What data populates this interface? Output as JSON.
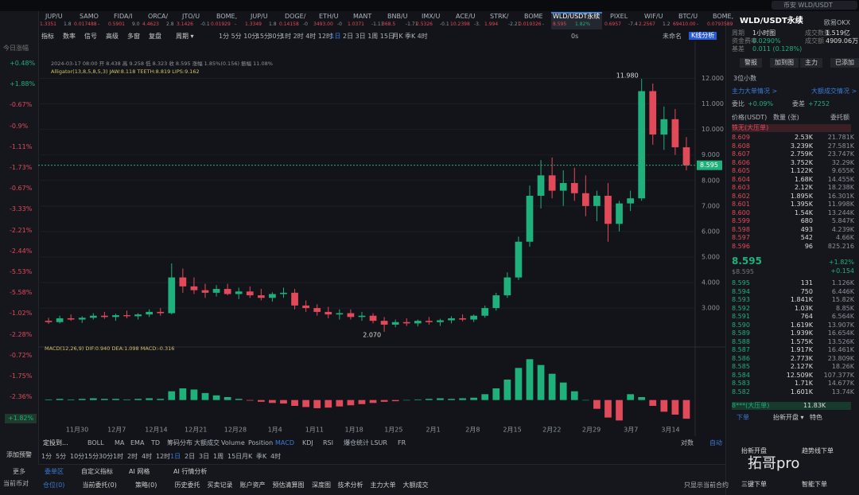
{
  "search": "币安 WLD/USDT",
  "left": {
    "title": "今日涨幅",
    "changes": [
      "+0.48%",
      "+1.88%",
      "-0.67%",
      "-0.9%",
      "-1.11%",
      "-1.73%",
      "-0.67%",
      "-3.33%",
      "-2.21%",
      "-2.44%",
      "-5.53%",
      "-5.58%",
      "-1.02%",
      "-2.28%",
      "-0.72%",
      "-1.75%",
      "-2.36%",
      "+1.82%"
    ],
    "alert": "添加预警",
    "more": "更多",
    "pair": "当前币对"
  },
  "tabs": [
    {
      "name": "JUP/U",
      "price": "1.3351",
      "change": "1.8"
    },
    {
      "name": "SAMO",
      "price": "0.017488",
      "change": "-"
    },
    {
      "name": "FIDA/I",
      "price": "0.5901",
      "change": "9.0"
    },
    {
      "name": "ORCA/",
      "price": "4.4623",
      "change": "2.8"
    },
    {
      "name": "JTO/U",
      "price": "3.1426",
      "change": "-0.1"
    },
    {
      "name": "BOME,",
      "price": "0.01929",
      "change": "-"
    },
    {
      "name": "JUP/U",
      "price": "1.3349",
      "change": "1.8"
    },
    {
      "name": "DOGE/",
      "price": "0.14158",
      "change": "-0"
    },
    {
      "name": "ETH/U",
      "price": "3493.00",
      "change": "-0"
    },
    {
      "name": "MANT",
      "price": "1.0371",
      "change": "-1.11"
    },
    {
      "name": "BNB/U",
      "price": "368.5",
      "change": "-1.71"
    },
    {
      "name": "IMX/U",
      "price": "2.5326",
      "change": "-0.1"
    },
    {
      "name": "ACE/U",
      "price": "10.2398",
      "change": "-3."
    },
    {
      "name": "STRK/",
      "price": "1.994",
      "change": "-2.21"
    },
    {
      "name": "BOME",
      "price": "0.019326",
      "change": "-"
    },
    {
      "name": "WLD/USDT永续",
      "price": "8.595",
      "change": "1.82%"
    },
    {
      "name": "PIXEL",
      "price": "0.6957",
      "change": "-7.4"
    },
    {
      "name": "WIF/U",
      "price": "2.2567",
      "change": "1.2"
    },
    {
      "name": "BTC/U",
      "price": "69410.00",
      "change": "-"
    },
    {
      "name": "BOME,",
      "price": "0.0793589",
      "change": ""
    }
  ],
  "toolbar": {
    "tools": [
      "指标",
      "数率",
      "信号",
      "高级",
      "多窗",
      "复盘",
      "周期 ▾"
    ],
    "periods": [
      "1分",
      "5分",
      "10分",
      "15分",
      "30分",
      "1时",
      "2时",
      "4时",
      "12时",
      "1日",
      "2日",
      "3日",
      "1周",
      "15日",
      "月K",
      "季K",
      "4时"
    ],
    "speed": "0s",
    "layout": "未命名",
    "analysis": "K线分析"
  },
  "chart_data": {
    "type": "candlestick",
    "info": "2024-03-17 08:00 开 8.438 高 9.258 低 8.323 收 8.595 涨幅 1.85%(0.156) 振幅 11.08%",
    "indicator": "Alligator(13,8,5,8,5,3)  JAW:8.118  TEETH:8.819  LIPS:9.162",
    "candles": [
      [
        2.5,
        2.62,
        2.38,
        2.45
      ],
      [
        2.45,
        2.7,
        2.4,
        2.6
      ],
      [
        2.6,
        2.75,
        2.5,
        2.55
      ],
      [
        2.55,
        2.68,
        2.42,
        2.62
      ],
      [
        2.62,
        2.8,
        2.55,
        2.7
      ],
      [
        2.7,
        2.85,
        2.58,
        2.65
      ],
      [
        2.65,
        2.78,
        2.5,
        2.72
      ],
      [
        2.72,
        2.9,
        2.6,
        2.68
      ],
      [
        2.68,
        2.8,
        2.55,
        2.75
      ],
      [
        2.75,
        2.95,
        2.65,
        2.85
      ],
      [
        2.85,
        3,
        2.7,
        2.8
      ],
      [
        2.8,
        4.75,
        2.75,
        4.2
      ],
      [
        4.2,
        4.55,
        3.6,
        3.85
      ],
      [
        3.85,
        4.2,
        3.55,
        3.7
      ],
      [
        3.7,
        3.95,
        3.4,
        3.6
      ],
      [
        3.6,
        3.9,
        3.45,
        3.75
      ],
      [
        3.75,
        3.95,
        3.5,
        3.55
      ],
      [
        3.55,
        3.8,
        3.35,
        3.65
      ],
      [
        3.65,
        3.85,
        3.4,
        3.5
      ],
      [
        3.5,
        3.75,
        3.3,
        3.4
      ],
      [
        3.4,
        3.62,
        3.25,
        3.55
      ],
      [
        3.55,
        3.8,
        3.4,
        3.6
      ],
      [
        3.6,
        3.75,
        2.95,
        3.1
      ],
      [
        3.1,
        3.3,
        2.85,
        3
      ],
      [
        3,
        3.15,
        2.7,
        2.85
      ],
      [
        2.85,
        3.05,
        2.6,
        2.75
      ],
      [
        2.75,
        2.95,
        2.55,
        2.8
      ],
      [
        2.8,
        2.95,
        2.55,
        2.65
      ],
      [
        2.65,
        2.85,
        2.5,
        2.7
      ],
      [
        2.7,
        2.8,
        2.4,
        2.5
      ],
      [
        2.5,
        2.65,
        2.07,
        2.35
      ],
      [
        2.35,
        2.55,
        2.25,
        2.45
      ],
      [
        2.45,
        2.6,
        2.3,
        2.4
      ],
      [
        2.4,
        2.55,
        2.28,
        2.5
      ],
      [
        2.5,
        2.65,
        2.35,
        2.45
      ],
      [
        2.45,
        2.58,
        2.3,
        2.52
      ],
      [
        2.52,
        2.68,
        2.4,
        2.6
      ],
      [
        2.6,
        2.75,
        2.48,
        2.55
      ],
      [
        2.55,
        2.75,
        2.45,
        2.7
      ],
      [
        2.7,
        3.1,
        2.62,
        3
      ],
      [
        3,
        3.6,
        2.9,
        3.5
      ],
      [
        3.5,
        4.4,
        3.4,
        4.2
      ],
      [
        4.2,
        5.8,
        4.1,
        5.6
      ],
      [
        5.6,
        7.8,
        5.4,
        7.4
      ],
      [
        7.4,
        8.8,
        6.9,
        8.2
      ],
      [
        8.2,
        8.9,
        7.3,
        7.6
      ],
      [
        7.6,
        8.4,
        7,
        7.9
      ],
      [
        7.9,
        8.5,
        7.2,
        7.5
      ],
      [
        7.5,
        8.2,
        6.6,
        7
      ],
      [
        7,
        7.6,
        6.4,
        7.4
      ],
      [
        7.4,
        7.9,
        5.6,
        6.3
      ],
      [
        6.3,
        7.2,
        6,
        7.1
      ],
      [
        7.1,
        7.6,
        6.8,
        7.3
      ],
      [
        7.3,
        11.98,
        7.2,
        11.5
      ],
      [
        11.5,
        11.8,
        9.4,
        9.8
      ],
      [
        9.8,
        10.9,
        9.2,
        10.4
      ],
      [
        10.4,
        10.8,
        9,
        9.3
      ],
      [
        9.3,
        9.7,
        8.4,
        8.595
      ]
    ],
    "up_color": "#1fb07c",
    "down_color": "#e24a5a",
    "ylim": [
      1.6,
      13.2
    ],
    "yticks": [
      {
        "value": 3,
        "label": "3.000"
      },
      {
        "value": 4,
        "label": "4.000"
      },
      {
        "value": 5,
        "label": "5.000"
      },
      {
        "value": 6,
        "label": "6.000"
      },
      {
        "value": 7,
        "label": "7.000"
      },
      {
        "value": 8,
        "label": "8.000"
      },
      {
        "value": 9,
        "label": "9.000"
      },
      {
        "value": 10,
        "label": "10.000"
      },
      {
        "value": 11,
        "label": "11.000"
      },
      {
        "value": 12,
        "label": "12.000"
      }
    ],
    "high_label": "11.980",
    "low_label": "2.070",
    "xticks": [
      "11月30",
      "12月7",
      "12月14",
      "12月21",
      "12月28",
      "1月4",
      "1月11",
      "1月18",
      "1月25",
      "2月1",
      "2月8",
      "2月15",
      "2月22",
      "2月29",
      "3月7",
      "3月14"
    ],
    "macd": {
      "title": "MACD(12,26,9)  DIF:0.940  DEA:1.098  MACD:-0.316",
      "values": [
        0.01,
        0.02,
        0.01,
        0.02,
        0.03,
        0.02,
        0.02,
        0.01,
        0.02,
        0.03,
        0.02,
        0.15,
        0.2,
        0.18,
        0.12,
        0.08,
        0.05,
        0.02,
        -0.01,
        -0.03,
        -0.05,
        -0.06,
        -0.1,
        -0.12,
        -0.14,
        -0.13,
        -0.11,
        -0.09,
        -0.07,
        -0.05,
        -0.03,
        -0.02,
        0,
        0.01,
        0.02,
        0.03,
        0.02,
        0.03,
        0.04,
        0.1,
        0.2,
        0.35,
        0.55,
        0.7,
        0.6,
        0.45,
        0.3,
        0.15,
        0,
        -0.15,
        -0.3,
        -0.35,
        0.1,
        0.05,
        -0.1,
        -0.2,
        -0.25,
        -0.32
      ],
      "ylim": [
        -0.4,
        0.8
      ]
    }
  },
  "indicator_bar": {
    "left": "定投到...",
    "items": [
      "BOLL",
      "MA",
      "EMA",
      "TD",
      "筹码分布",
      "大额成交",
      "Volume",
      "Position",
      "MACD",
      "KDJ",
      "RSI",
      "爆仓统计",
      "LSUR",
      "FR"
    ],
    "log": "对数",
    "auto": "自动"
  },
  "bottom": {
    "tabs": [
      "委单区",
      "自定义指标",
      "AI 网格",
      "AI 行情分析"
    ],
    "subtabs": [
      "仓位(0)",
      "当前委托(0)",
      "策略(0)",
      "历史委托",
      "买卖记录",
      "账户资产",
      "预估清算图",
      "深度图",
      "技术分析",
      "主力大单",
      "大额成交"
    ],
    "only": "只显示当前合约"
  },
  "panel": {
    "title": "WLD/USDT永续",
    "exchange": "欧易OKX",
    "stats": [
      [
        "周期",
        "1小时图"
      ],
      [
        "成交数量",
        "1.519亿"
      ],
      [
        "资金费率",
        "0.0290%"
      ],
      [
        "成交额",
        "4909.06万"
      ],
      [
        "基差",
        "0.011 (0.128%)"
      ]
    ],
    "buttons": [
      "警报",
      "加到图",
      "主力",
      "已添加"
    ],
    "decimals": "3位小数",
    "links": [
      "主力大单情况 >",
      "大额成交情况 >"
    ],
    "ratio": [
      "委比",
      "+0.09%",
      "委差",
      "+7252"
    ],
    "head": [
      "价格(USDT)",
      "数量 (张)",
      "委托额"
    ],
    "big_ask": "铁无(大压单)",
    "asks": [
      [
        "8.609",
        "2.53K",
        "21.781K"
      ],
      [
        "8.608",
        "3.239K",
        "27.581K"
      ],
      [
        "8.607",
        "2.759K",
        "23.747K"
      ],
      [
        "8.606",
        "3.752K",
        "32.29K"
      ],
      [
        "8.605",
        "1.122K",
        "9.655K"
      ],
      [
        "8.604",
        "1.68K",
        "14.455K"
      ],
      [
        "8.603",
        "2.12K",
        "18.238K"
      ],
      [
        "8.602",
        "1.895K",
        "16.301K"
      ],
      [
        "8.601",
        "1.395K",
        "11.998K"
      ],
      [
        "8.600",
        "1.54K",
        "13.244K"
      ],
      [
        "8.599",
        "680",
        "5.847K"
      ],
      [
        "8.598",
        "493",
        "4.239K"
      ],
      [
        "8.597",
        "542",
        "4.66K"
      ],
      [
        "8.596",
        "96",
        "825.216"
      ]
    ],
    "mid": [
      "8.595",
      "$8.595",
      "+1.82%",
      "+0.154"
    ],
    "bids": [
      [
        "8.595",
        "131",
        "1.126K"
      ],
      [
        "8.594",
        "750",
        "6.446K"
      ],
      [
        "8.593",
        "1.841K",
        "15.82K"
      ],
      [
        "8.592",
        "1.03K",
        "8.85K"
      ],
      [
        "8.591",
        "764",
        "6.564K"
      ],
      [
        "8.590",
        "1.619K",
        "13.907K"
      ],
      [
        "8.589",
        "1.939K",
        "16.654K"
      ],
      [
        "8.588",
        "1.575K",
        "13.526K"
      ],
      [
        "8.587",
        "1.917K",
        "16.461K"
      ],
      [
        "8.586",
        "2.773K",
        "23.809K"
      ],
      [
        "8.585",
        "2.127K",
        "18.26K"
      ],
      [
        "8.584",
        "12.509K",
        "107.377K"
      ],
      [
        "8.583",
        "1.71K",
        "14.677K"
      ],
      [
        "8.582",
        "1.601K",
        "13.74K"
      ]
    ],
    "big_bid": [
      "8***(大压单)",
      "11.83K"
    ],
    "order_tabs": [
      "下单",
      "抬新开盘 ▾",
      "特色"
    ],
    "actions": [
      "抬新开盘",
      "趋势线下单",
      "三键下单",
      "智能下单"
    ],
    "watermark": "拓哥pro"
  }
}
